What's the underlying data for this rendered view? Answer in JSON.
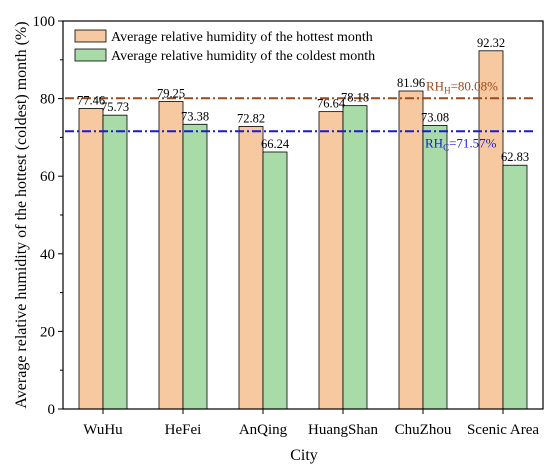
{
  "chart_data": {
    "type": "bar",
    "xlabel": "City",
    "ylabel": "Average relative humidity of the hottest (coldest) month (%)",
    "ylim": [
      0,
      100
    ],
    "yticks": [
      0,
      20,
      40,
      60,
      80,
      100
    ],
    "categories": [
      "WuHu",
      "HeFei",
      "AnQing",
      "HuangShan",
      "ChuZhou",
      "Scenic Area"
    ],
    "series": [
      {
        "name": "Average relative humidity of the hottest month",
        "values": [
          77.46,
          79.25,
          72.82,
          76.64,
          81.96,
          92.32
        ],
        "labels": [
          "77.46",
          "79.25",
          "72.82",
          "76.64",
          "81.96",
          "92.32"
        ],
        "color": "#F7C9A0"
      },
      {
        "name": "Average relative humidity of the coldest month",
        "values": [
          75.73,
          73.38,
          66.24,
          78.18,
          73.08,
          62.83
        ],
        "labels": [
          "75.73",
          "73.38",
          "66.24",
          "78.18",
          "73.08",
          "62.83"
        ],
        "color": "#A8DBA8"
      }
    ],
    "reference_lines": [
      {
        "value": 80.08,
        "label_main": "RH",
        "label_sub": "H",
        "label_rest": "=80.08%",
        "color": "#9B4A1E",
        "style": "dash-dot"
      },
      {
        "value": 71.57,
        "label_main": "RH",
        "label_sub": "C",
        "label_rest": "=71.57%",
        "color": "#1A1AD6",
        "style": "dash-dot"
      }
    ],
    "legend_position": "top-left",
    "grid": false
  }
}
